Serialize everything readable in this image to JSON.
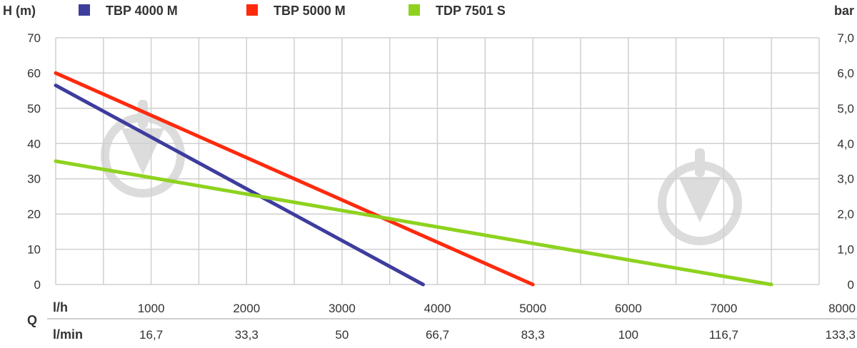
{
  "chart_data": {
    "type": "line",
    "y_left_label": "H (m)",
    "y_right_label": "bar",
    "x_row1_label": "l/h",
    "x_row2_label": "l/min",
    "x_axis_letter": "Q",
    "xlim": [
      0,
      8000
    ],
    "ylim": [
      0,
      70
    ],
    "x_ticks": [
      1000,
      2000,
      3000,
      4000,
      5000,
      6000,
      7000,
      8000
    ],
    "x_ticks_lmin": [
      "16,7",
      "33,3",
      "50",
      "66,7",
      "83,3",
      "100",
      "116,7",
      "133,3"
    ],
    "y_ticks_left": [
      "0",
      "10",
      "20",
      "30",
      "40",
      "50",
      "60",
      "70"
    ],
    "y_ticks_right": [
      "0",
      "1,0",
      "2,0",
      "3,0",
      "4,0",
      "5,0",
      "6,0",
      "7,0"
    ],
    "grid": true,
    "legend_position": "top",
    "series": [
      {
        "name": "TBP 4000 M",
        "color": "#3d3d9e",
        "x": [
          0,
          3850
        ],
        "y": [
          56.5,
          0
        ]
      },
      {
        "name": "TBP 5000 M",
        "color": "#ff2a0d",
        "x": [
          0,
          5000
        ],
        "y": [
          60,
          0
        ]
      },
      {
        "name": "TDP 7501 S",
        "color": "#8ed21f",
        "x": [
          0,
          7500
        ],
        "y": [
          35,
          0
        ]
      }
    ]
  },
  "colors": {
    "grid": "#d0d0d0",
    "watermark": "#dcdcdc"
  }
}
